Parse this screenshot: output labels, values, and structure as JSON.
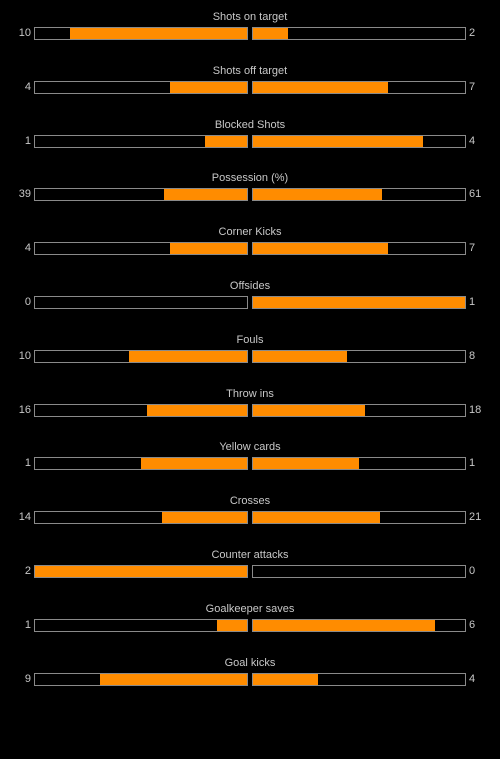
{
  "colors": {
    "background": "#000000",
    "text": "#c8c8c8",
    "bar_border": "#8a8a8a",
    "bar_fill": "#ff8c00"
  },
  "stats": [
    {
      "label": "Shots on target",
      "home": 10,
      "away": 2
    },
    {
      "label": "Shots off target",
      "home": 4,
      "away": 7
    },
    {
      "label": "Blocked Shots",
      "home": 1,
      "away": 4
    },
    {
      "label": "Possession (%)",
      "home": 39,
      "away": 61
    },
    {
      "label": "Corner Kicks",
      "home": 4,
      "away": 7
    },
    {
      "label": "Offsides",
      "home": 0,
      "away": 1
    },
    {
      "label": "Fouls",
      "home": 10,
      "away": 8
    },
    {
      "label": "Throw ins",
      "home": 16,
      "away": 18
    },
    {
      "label": "Yellow cards",
      "home": 1,
      "away": 1
    },
    {
      "label": "Crosses",
      "home": 14,
      "away": 21
    },
    {
      "label": "Counter attacks",
      "home": 2,
      "away": 0
    },
    {
      "label": "Goalkeeper saves",
      "home": 1,
      "away": 6
    },
    {
      "label": "Goal kicks",
      "home": 9,
      "away": 4
    }
  ]
}
